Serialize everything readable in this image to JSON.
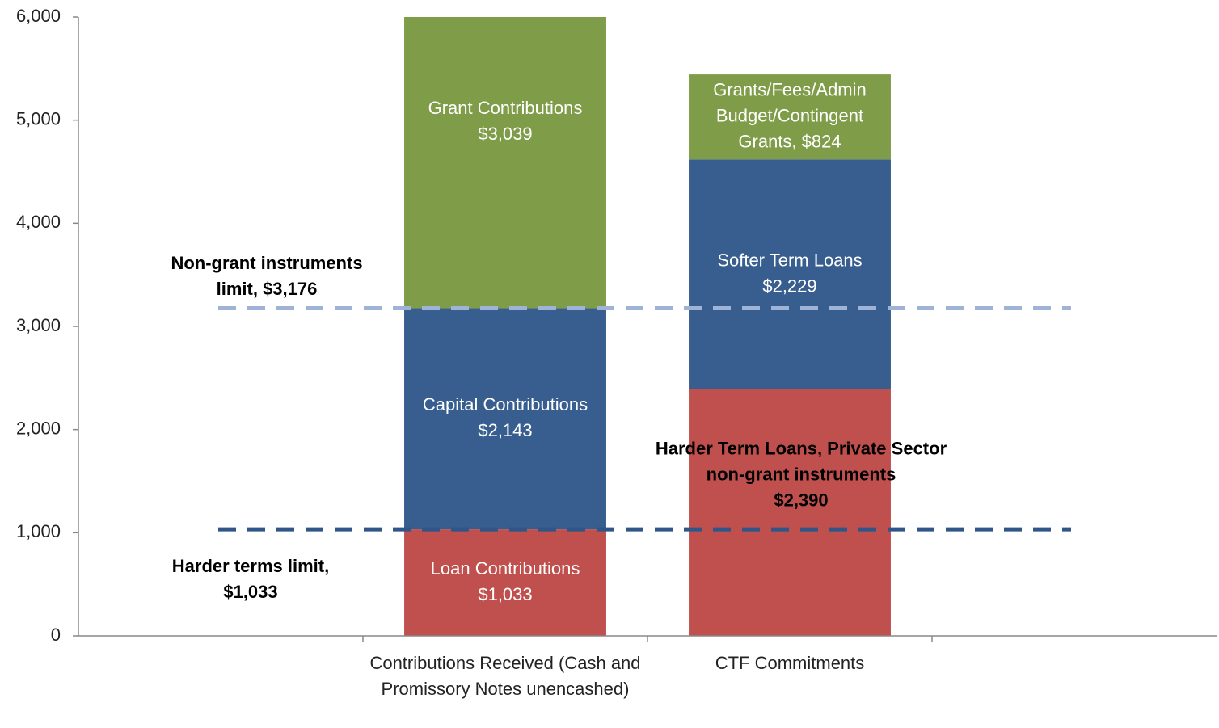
{
  "chart_data": {
    "type": "stacked_bar",
    "categories": [
      null,
      "Contributions Received (Cash and Promissory Notes unencashed)",
      "CTF Commitments",
      null
    ],
    "series": [
      {
        "color": "#c0504d",
        "values": [
          null,
          1033,
          2390,
          null
        ],
        "value_labels": [
          null,
          [
            "Loan Contributions",
            "$1,033"
          ],
          [
            "Harder Term Loans, Private Sector",
            "non-grant instruments",
            "$2,390"
          ],
          null
        ],
        "label_colors": [
          null,
          "#ffffff",
          "#000000"
        ]
      },
      {
        "color": "#375e8f",
        "values": [
          null,
          2143,
          2229,
          null
        ],
        "value_labels": [
          null,
          [
            "Capital Contributions",
            "$2,143"
          ],
          [
            "Softer Term Loans",
            "$2,229"
          ],
          null
        ],
        "label_colors": [
          null,
          "#ffffff",
          "#ffffff"
        ]
      },
      {
        "color": "#7f9c48",
        "values": [
          null,
          3039,
          824,
          null
        ],
        "value_labels": [
          null,
          [
            "Grant Contributions",
            "$3,039"
          ],
          [
            "Grants/Fees/Admin",
            "Budget/Contingent",
            "Grants, $824"
          ],
          null
        ],
        "label_colors": [
          null,
          "#ffffff",
          "#ffffff"
        ]
      }
    ],
    "reference_lines": [
      {
        "value": 3176,
        "label": "Non-grant instruments limit, $3,176",
        "color": "#9fb3d6"
      },
      {
        "value": 1033,
        "label": "Harder terms limit, $1,033",
        "color": "#2f5589"
      }
    ],
    "ylim": [
      0,
      6000
    ],
    "yticks": [
      0,
      {
        "value": 1000,
        "label": "1,000"
      },
      {
        "value": 2000,
        "label": "2,000"
      },
      {
        "value": 3000,
        "label": "3,000"
      },
      {
        "value": 4000,
        "label": "4,000"
      },
      {
        "value": 5000,
        "label": "5,000"
      },
      {
        "value": 6000,
        "label": "6,000"
      }
    ],
    "grid": false
  }
}
